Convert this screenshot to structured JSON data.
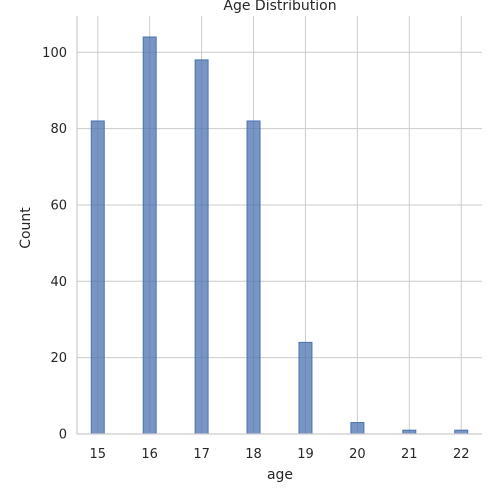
{
  "chart_data": {
    "type": "bar",
    "title": "Age Distribution",
    "xlabel": "age",
    "ylabel": "Count",
    "categories": [
      15,
      16,
      17,
      18,
      19,
      20,
      21,
      22
    ],
    "values": [
      82,
      104,
      98,
      82,
      24,
      3,
      1,
      1
    ],
    "x_ticks": [
      "15",
      "16",
      "17",
      "18",
      "19",
      "20",
      "21",
      "22"
    ],
    "y_ticks": [
      "0",
      "20",
      "40",
      "60",
      "80",
      "100"
    ],
    "xlim": [
      14.6,
      22.4
    ],
    "ylim": [
      0,
      109.5
    ],
    "grid": true,
    "bar_color": "#4c72b0"
  }
}
